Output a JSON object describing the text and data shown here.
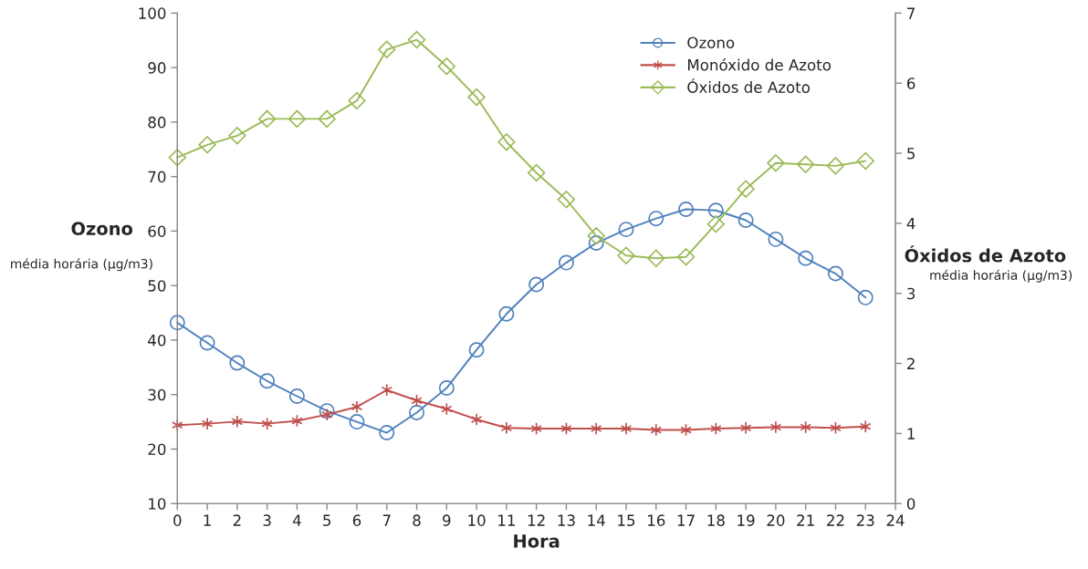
{
  "chart_data": {
    "type": "line",
    "xlabel": "Hora",
    "ylabel": "Ozono",
    "y2label": "Óxidos de Azoto",
    "annotations": [
      "média horária (µg/m3)",
      "média horária (µg/m3)"
    ],
    "x": [
      0,
      1,
      2,
      3,
      4,
      5,
      6,
      7,
      8,
      9,
      10,
      11,
      12,
      13,
      14,
      15,
      16,
      17,
      18,
      19,
      20,
      21,
      22,
      23
    ],
    "series": [
      {
        "name": "Ozono",
        "color": "#4f81bd",
        "marker": "circle",
        "values": [
          43.2,
          39.5,
          35.8,
          32.5,
          29.7,
          27.0,
          25.0,
          23.0,
          26.7,
          31.2,
          38.2,
          44.8,
          50.2,
          54.2,
          57.8,
          60.3,
          62.3,
          64.0,
          63.8,
          62.0,
          58.5,
          55.0,
          52.2,
          47.8
        ]
      },
      {
        "name": "Monóxido de Azoto",
        "color": "#c0504d",
        "marker": "cross",
        "axis": "y2",
        "values": [
          1.12,
          1.14,
          1.17,
          1.14,
          1.18,
          1.27,
          1.38,
          1.62,
          1.47,
          1.35,
          1.2,
          1.08,
          1.07,
          1.07,
          1.07,
          1.07,
          1.05,
          1.05,
          1.07,
          1.08,
          1.09,
          1.09,
          1.08,
          1.1
        ]
      },
      {
        "name": "Óxidos de Azoto",
        "color": "#9bbb59",
        "marker": "diamond",
        "axis": "y2",
        "values": [
          4.94,
          5.12,
          5.25,
          5.49,
          5.49,
          5.49,
          5.75,
          6.48,
          6.62,
          6.24,
          5.8,
          5.16,
          4.72,
          4.34,
          3.82,
          3.54,
          3.5,
          3.52,
          3.99,
          4.49,
          4.86,
          4.84,
          4.82,
          4.89
        ]
      }
    ],
    "xlim": [
      0,
      24
    ],
    "xticks": [
      0,
      1,
      2,
      3,
      4,
      5,
      6,
      7,
      8,
      9,
      10,
      11,
      12,
      13,
      14,
      15,
      16,
      17,
      18,
      19,
      20,
      21,
      22,
      23,
      24
    ],
    "ylim": [
      10,
      100
    ],
    "yticks": [
      10,
      20,
      30,
      40,
      50,
      60,
      70,
      80,
      90,
      100
    ],
    "y2lim": [
      0,
      7
    ],
    "y2ticks": [
      0,
      1,
      2,
      3,
      4,
      5,
      6,
      7
    ],
    "grid": false,
    "legend": "top right",
    "line_style": "solid"
  }
}
